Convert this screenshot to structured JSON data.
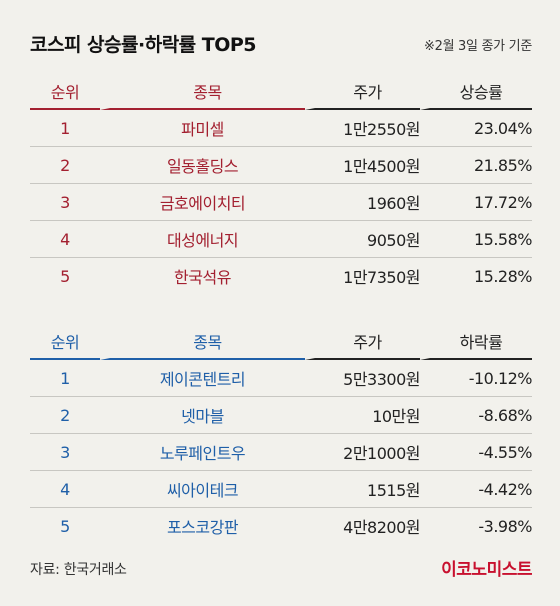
{
  "title": "코스피 상승률·하락률 TOP5",
  "note": "※2월 3일 종가 기준",
  "rise": {
    "headers": [
      "순위",
      "종목",
      "주가",
      "상승률"
    ],
    "rows": [
      {
        "rank": "1",
        "name": "파미셀",
        "price": "1만2550원",
        "rate": "23.04%"
      },
      {
        "rank": "2",
        "name": "일동홀딩스",
        "price": "1만4500원",
        "rate": "21.85%"
      },
      {
        "rank": "3",
        "name": "금호에이치티",
        "price": "1960원",
        "rate": "17.72%"
      },
      {
        "rank": "4",
        "name": "대성에너지",
        "price": "9050원",
        "rate": "15.58%"
      },
      {
        "rank": "5",
        "name": "한국석유",
        "price": "1만7350원",
        "rate": "15.28%"
      }
    ]
  },
  "fall": {
    "headers": [
      "순위",
      "종목",
      "주가",
      "하락률"
    ],
    "rows": [
      {
        "rank": "1",
        "name": "제이콘텐트리",
        "price": "5만3300원",
        "rate": "-10.12%"
      },
      {
        "rank": "2",
        "name": "넷마블",
        "price": "10만원",
        "rate": "-8.68%"
      },
      {
        "rank": "3",
        "name": "노루페인트우",
        "price": "2만1000원",
        "rate": "-4.55%"
      },
      {
        "rank": "4",
        "name": "씨아이테크",
        "price": "1515원",
        "rate": "-4.42%"
      },
      {
        "rank": "5",
        "name": "포스코강판",
        "price": "4만8200원",
        "rate": "-3.98%"
      }
    ]
  },
  "source": "자료: 한국거래소",
  "logo": "이코노미스트",
  "colors": {
    "rise": "#a32030",
    "fall": "#1f5fa8",
    "logo": "#c8102e",
    "background": "#f2f1ec"
  }
}
